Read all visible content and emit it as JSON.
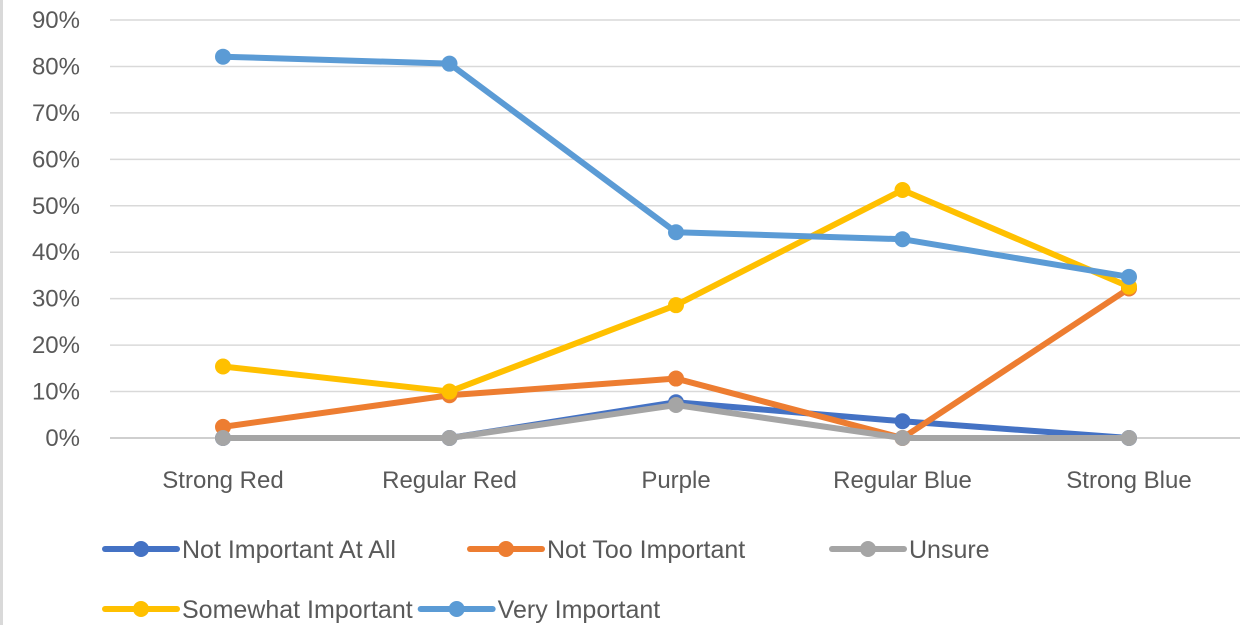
{
  "chart_data": {
    "type": "line",
    "title": "",
    "xlabel": "",
    "ylabel": "",
    "categories": [
      "Strong Red",
      "Regular Red",
      "Purple",
      "Regular Blue",
      "Strong Blue"
    ],
    "y_ticks": [
      "0%",
      "10%",
      "20%",
      "30%",
      "40%",
      "50%",
      "60%",
      "70%",
      "80%",
      "90%"
    ],
    "ylim": [
      0,
      90
    ],
    "y_unit": "%",
    "grid": true,
    "legend_position": "bottom",
    "series": [
      {
        "name": "Not Important At All",
        "color": "#4472C4",
        "values": [
          0,
          0,
          7.7,
          3.6,
          0
        ]
      },
      {
        "name": "Not Too Important",
        "color": "#ED7D31",
        "values": [
          2.4,
          9.2,
          12.8,
          0,
          32.2
        ]
      },
      {
        "name": "Unsure",
        "color": "#A5A5A5",
        "values": [
          0,
          0,
          7.1,
          0,
          0
        ]
      },
      {
        "name": "Somewhat Important",
        "color": "#FFC000",
        "values": [
          15.4,
          10.0,
          28.6,
          53.4,
          32.6
        ]
      },
      {
        "name": "Very Important",
        "color": "#5B9BD5",
        "values": [
          82.1,
          80.6,
          44.3,
          42.8,
          34.7
        ]
      }
    ]
  }
}
